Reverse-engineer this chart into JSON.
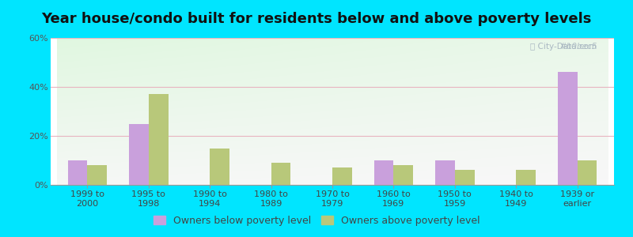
{
  "title": "Year house/condo built for residents below and above poverty levels",
  "categories": [
    "1999 to\n2000",
    "1995 to\n1998",
    "1990 to\n1994",
    "1980 to\n1989",
    "1970 to\n1979",
    "1960 to\n1969",
    "1950 to\n1959",
    "1940 to\n1949",
    "1939 or\nearlier"
  ],
  "below_poverty": [
    10,
    25,
    0,
    0,
    0,
    10,
    10,
    0,
    46
  ],
  "above_poverty": [
    8,
    37,
    15,
    9,
    7,
    8,
    6,
    6,
    10
  ],
  "below_color": "#c9a0dc",
  "above_color": "#b8c87a",
  "ylim": [
    0,
    60
  ],
  "yticks": [
    0,
    20,
    40,
    60
  ],
  "ytick_labels": [
    "0%",
    "20%",
    "40%",
    "60%"
  ],
  "bar_width": 0.32,
  "legend_below": "Owners below poverty level",
  "legend_above": "Owners above poverty level",
  "title_fontsize": 13,
  "tick_fontsize": 8,
  "legend_fontsize": 9,
  "outer_bg": "#00e5ff",
  "grid_color": "#e8b4c0",
  "watermark_color": "#b0bec5"
}
